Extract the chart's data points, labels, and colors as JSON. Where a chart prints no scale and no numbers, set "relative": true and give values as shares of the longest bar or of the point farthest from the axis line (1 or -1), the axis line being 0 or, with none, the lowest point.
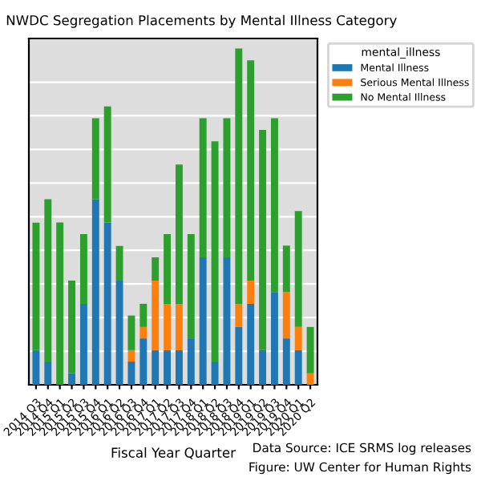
{
  "chart_data": {
    "type": "bar",
    "stacked": true,
    "relative": true,
    "title": "NWDC Segregation Placements by Mental Illness Category",
    "xlabel": "Fiscal Year Quarter",
    "legend_title": "mental_illness",
    "legend": "right",
    "grid": "y",
    "tick_labels": "x",
    "annotations": [
      "Data Source: ICE SRMS log releases",
      "Figure: UW Center for Human Rights"
    ],
    "categories": [
      "2014 Q3",
      "2014 Q4",
      "2015 Q1",
      "2015 Q2",
      "2015 Q3",
      "2015 Q4",
      "2016 Q1",
      "2016 Q2",
      "2016 Q3",
      "2016 Q4",
      "2017 Q1",
      "2017 Q2",
      "2017 Q3",
      "2017 Q4",
      "2018 Q1",
      "2018 Q2",
      "2018 Q3",
      "2018 Q4",
      "2019 Q1",
      "2019 Q2",
      "2019 Q3",
      "2019 Q4",
      "2020 Q1",
      "2020 Q2"
    ],
    "series": [
      {
        "name": "Mental Illness",
        "color": "#1f77b4",
        "values": [
          0.103,
          0.069,
          0,
          0.034,
          0.241,
          0.552,
          0.483,
          0.31,
          0.069,
          0.138,
          0.103,
          0.103,
          0.103,
          0.138,
          0.379,
          0.069,
          0.379,
          0.172,
          0.241,
          0.103,
          0.276,
          0.138,
          0.103,
          0
        ]
      },
      {
        "name": "Serious Mental Illness",
        "color": "#ff7f0e",
        "values": [
          0,
          0,
          0,
          0,
          0,
          0,
          0,
          0,
          0.034,
          0.034,
          0.207,
          0.138,
          0.138,
          0,
          0,
          0,
          0,
          0.069,
          0.069,
          0,
          0,
          0.138,
          0.069,
          0.034
        ]
      },
      {
        "name": "No Mental Illness",
        "color": "#2ca02c",
        "values": [
          0.379,
          0.483,
          0.483,
          0.276,
          0.207,
          0.241,
          0.345,
          0.103,
          0.103,
          0.069,
          0.069,
          0.207,
          0.414,
          0.31,
          0.414,
          0.655,
          0.414,
          0.759,
          0.655,
          0.655,
          0.517,
          0.138,
          0.345,
          0.138
        ]
      }
    ]
  }
}
